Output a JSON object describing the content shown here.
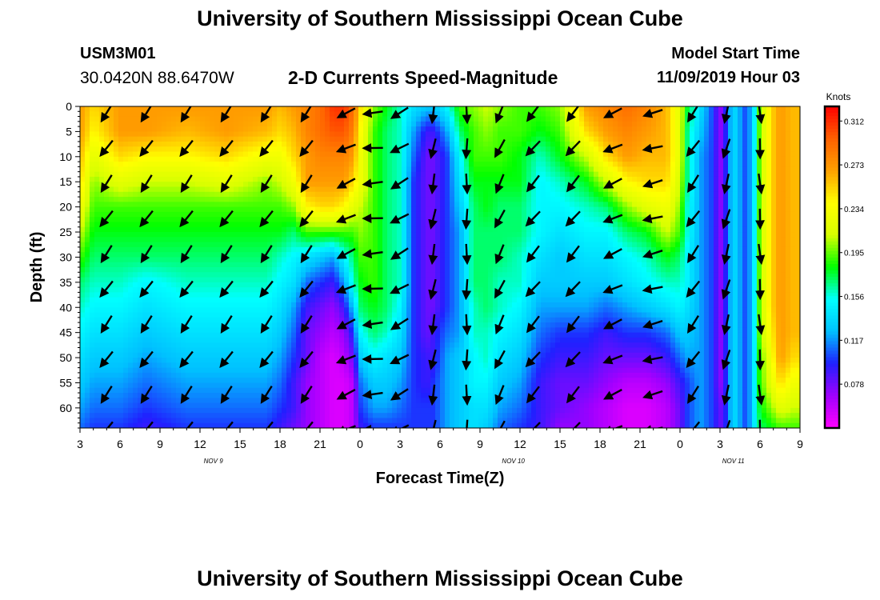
{
  "header": {
    "title": "University of Southern Mississippi Ocean Cube",
    "station_id": "USM3M01",
    "coordinates": "30.0420N 88.6470W",
    "product_title": "2-D Currents Speed-Magnitude",
    "model_start_label": "Model Start Time",
    "model_start_value": "11/09/2019 Hour 03"
  },
  "footer": {
    "title": "University of Southern Mississippi Ocean Cube"
  },
  "chart_data": {
    "type": "heatmap",
    "xlabel": "Forecast Time(Z)",
    "ylabel": "Depth (ft)",
    "x_range_hours": [
      0,
      54
    ],
    "y_range_ft": [
      0,
      64
    ],
    "y_reversed": true,
    "x_ticks": [
      {
        "h": 0,
        "label": "3"
      },
      {
        "h": 3,
        "label": "6"
      },
      {
        "h": 6,
        "label": "9"
      },
      {
        "h": 9,
        "label": "12"
      },
      {
        "h": 12,
        "label": "15"
      },
      {
        "h": 15,
        "label": "18"
      },
      {
        "h": 18,
        "label": "21"
      },
      {
        "h": 21,
        "label": "0"
      },
      {
        "h": 24,
        "label": "3"
      },
      {
        "h": 27,
        "label": "6"
      },
      {
        "h": 30,
        "label": "9"
      },
      {
        "h": 33,
        "label": "12"
      },
      {
        "h": 36,
        "label": "15"
      },
      {
        "h": 39,
        "label": "18"
      },
      {
        "h": 42,
        "label": "21"
      },
      {
        "h": 45,
        "label": "0"
      },
      {
        "h": 48,
        "label": "3"
      },
      {
        "h": 51,
        "label": "6"
      },
      {
        "h": 54,
        "label": "9"
      }
    ],
    "date_labels": [
      {
        "h": 10,
        "label": "NOV 9"
      },
      {
        "h": 32.5,
        "label": "NOV 10"
      },
      {
        "h": 49,
        "label": "NOV 11"
      }
    ],
    "y_ticks": [
      0,
      5,
      10,
      15,
      20,
      25,
      30,
      35,
      40,
      45,
      50,
      55,
      60
    ],
    "colorbar": {
      "unit": "Knots",
      "min": 0.039,
      "max": 0.325,
      "tick_values": [
        0.078,
        0.117,
        0.156,
        0.195,
        0.234,
        0.273,
        0.312
      ],
      "tick_labels": [
        "0.078",
        "0.117",
        "0.156",
        "0.195",
        "0.234",
        "0.273",
        "0.312"
      ],
      "colors": [
        "#ff00ff",
        "#a000ff",
        "#2020ff",
        "#00c0ff",
        "#00ffff",
        "#00ff00",
        "#d8ff00",
        "#ffff00",
        "#ffa000",
        "#ff6000",
        "#ff0000"
      ]
    },
    "speed_field": {
      "hours": [
        0,
        1,
        3,
        5,
        8,
        11,
        14,
        15,
        16,
        17,
        18,
        19,
        19.8,
        20.5,
        21,
        22,
        23,
        24,
        25,
        26,
        26.5,
        27.5,
        28.5,
        29.5,
        30.5,
        31.5,
        33,
        34.5,
        36,
        38,
        39.5,
        41,
        42.5,
        44,
        45,
        45.5,
        46.5,
        47.5,
        48,
        48.5,
        49,
        50,
        50.5,
        51,
        51.8,
        52.5,
        53.5,
        54
      ],
      "depths_ft": [
        0,
        5,
        10,
        15,
        20,
        25,
        30,
        35,
        40,
        45,
        50,
        55,
        60,
        64
      ],
      "knots": [
        [
          0.27,
          0.27,
          0.26,
          0.25,
          0.23,
          0.21,
          0.19,
          0.17,
          0.16,
          0.15,
          0.14,
          0.13,
          0.12,
          0.11
        ],
        [
          0.25,
          0.24,
          0.22,
          0.2,
          0.19,
          0.18,
          0.17,
          0.16,
          0.15,
          0.14,
          0.13,
          0.12,
          0.11,
          0.1
        ],
        [
          0.27,
          0.27,
          0.25,
          0.22,
          0.19,
          0.18,
          0.17,
          0.16,
          0.15,
          0.14,
          0.13,
          0.12,
          0.11,
          0.1
        ],
        [
          0.27,
          0.27,
          0.24,
          0.21,
          0.19,
          0.18,
          0.17,
          0.15,
          0.14,
          0.13,
          0.12,
          0.11,
          0.1,
          0.09
        ],
        [
          0.27,
          0.26,
          0.24,
          0.21,
          0.19,
          0.18,
          0.17,
          0.16,
          0.15,
          0.14,
          0.13,
          0.12,
          0.11,
          0.1
        ],
        [
          0.27,
          0.27,
          0.25,
          0.22,
          0.19,
          0.18,
          0.17,
          0.16,
          0.15,
          0.14,
          0.13,
          0.12,
          0.11,
          0.1
        ],
        [
          0.27,
          0.26,
          0.23,
          0.2,
          0.19,
          0.18,
          0.17,
          0.16,
          0.15,
          0.14,
          0.13,
          0.12,
          0.11,
          0.1
        ],
        [
          0.26,
          0.25,
          0.23,
          0.21,
          0.19,
          0.18,
          0.16,
          0.15,
          0.14,
          0.13,
          0.12,
          0.11,
          0.1,
          0.09
        ],
        [
          0.27,
          0.26,
          0.25,
          0.23,
          0.2,
          0.17,
          0.15,
          0.14,
          0.12,
          0.11,
          0.1,
          0.09,
          0.09,
          0.08
        ],
        [
          0.28,
          0.28,
          0.27,
          0.27,
          0.24,
          0.19,
          0.14,
          0.11,
          0.09,
          0.08,
          0.08,
          0.07,
          0.07,
          0.07
        ],
        [
          0.29,
          0.29,
          0.28,
          0.27,
          0.25,
          0.19,
          0.13,
          0.1,
          0.08,
          0.07,
          0.06,
          0.06,
          0.06,
          0.06
        ],
        [
          0.31,
          0.3,
          0.28,
          0.27,
          0.25,
          0.19,
          0.12,
          0.09,
          0.07,
          0.06,
          0.05,
          0.05,
          0.05,
          0.05
        ],
        [
          0.31,
          0.3,
          0.28,
          0.27,
          0.24,
          0.19,
          0.15,
          0.12,
          0.09,
          0.07,
          0.06,
          0.05,
          0.05,
          0.05
        ],
        [
          0.29,
          0.28,
          0.27,
          0.25,
          0.22,
          0.19,
          0.17,
          0.16,
          0.13,
          0.1,
          0.08,
          0.06,
          0.06,
          0.06
        ],
        [
          0.25,
          0.24,
          0.23,
          0.23,
          0.21,
          0.2,
          0.19,
          0.18,
          0.17,
          0.15,
          0.13,
          0.11,
          0.1,
          0.09
        ],
        [
          0.2,
          0.19,
          0.19,
          0.19,
          0.19,
          0.19,
          0.19,
          0.19,
          0.18,
          0.17,
          0.15,
          0.13,
          0.12,
          0.1
        ],
        [
          0.18,
          0.17,
          0.17,
          0.17,
          0.17,
          0.17,
          0.17,
          0.17,
          0.17,
          0.16,
          0.14,
          0.13,
          0.12,
          0.1
        ],
        [
          0.16,
          0.16,
          0.16,
          0.16,
          0.16,
          0.16,
          0.16,
          0.16,
          0.15,
          0.14,
          0.13,
          0.12,
          0.11,
          0.1
        ],
        [
          0.14,
          0.12,
          0.11,
          0.1,
          0.1,
          0.1,
          0.1,
          0.1,
          0.1,
          0.1,
          0.1,
          0.1,
          0.1,
          0.1
        ],
        [
          0.13,
          0.09,
          0.08,
          0.08,
          0.08,
          0.08,
          0.08,
          0.08,
          0.08,
          0.08,
          0.09,
          0.09,
          0.1,
          0.1
        ],
        [
          0.13,
          0.09,
          0.08,
          0.08,
          0.08,
          0.08,
          0.08,
          0.08,
          0.08,
          0.09,
          0.09,
          0.1,
          0.1,
          0.1
        ],
        [
          0.15,
          0.12,
          0.1,
          0.1,
          0.1,
          0.1,
          0.1,
          0.1,
          0.1,
          0.11,
          0.12,
          0.12,
          0.12,
          0.12
        ],
        [
          0.19,
          0.17,
          0.15,
          0.14,
          0.13,
          0.12,
          0.12,
          0.12,
          0.12,
          0.12,
          0.13,
          0.13,
          0.13,
          0.13
        ],
        [
          0.2,
          0.19,
          0.19,
          0.18,
          0.17,
          0.17,
          0.17,
          0.17,
          0.16,
          0.16,
          0.15,
          0.15,
          0.14,
          0.14
        ],
        [
          0.21,
          0.2,
          0.19,
          0.18,
          0.18,
          0.17,
          0.17,
          0.17,
          0.17,
          0.16,
          0.16,
          0.15,
          0.14,
          0.13
        ],
        [
          0.2,
          0.19,
          0.19,
          0.18,
          0.17,
          0.17,
          0.17,
          0.16,
          0.16,
          0.15,
          0.14,
          0.13,
          0.12,
          0.11
        ],
        [
          0.19,
          0.19,
          0.18,
          0.18,
          0.17,
          0.17,
          0.16,
          0.16,
          0.15,
          0.14,
          0.13,
          0.12,
          0.11,
          0.1
        ],
        [
          0.19,
          0.18,
          0.16,
          0.15,
          0.15,
          0.15,
          0.14,
          0.13,
          0.12,
          0.11,
          0.1,
          0.09,
          0.09,
          0.09
        ],
        [
          0.2,
          0.19,
          0.18,
          0.16,
          0.15,
          0.14,
          0.13,
          0.13,
          0.12,
          0.1,
          0.09,
          0.08,
          0.08,
          0.07
        ],
        [
          0.27,
          0.25,
          0.21,
          0.18,
          0.16,
          0.15,
          0.14,
          0.13,
          0.12,
          0.1,
          0.09,
          0.08,
          0.07,
          0.07
        ],
        [
          0.28,
          0.27,
          0.25,
          0.21,
          0.17,
          0.15,
          0.14,
          0.13,
          0.11,
          0.09,
          0.08,
          0.07,
          0.06,
          0.06
        ],
        [
          0.29,
          0.28,
          0.27,
          0.24,
          0.2,
          0.17,
          0.15,
          0.14,
          0.12,
          0.1,
          0.08,
          0.06,
          0.05,
          0.05
        ],
        [
          0.28,
          0.27,
          0.26,
          0.25,
          0.22,
          0.18,
          0.16,
          0.15,
          0.13,
          0.1,
          0.08,
          0.06,
          0.05,
          0.05
        ],
        [
          0.26,
          0.26,
          0.26,
          0.25,
          0.23,
          0.21,
          0.18,
          0.16,
          0.14,
          0.11,
          0.09,
          0.07,
          0.06,
          0.06
        ],
        [
          0.22,
          0.22,
          0.22,
          0.21,
          0.2,
          0.19,
          0.17,
          0.16,
          0.15,
          0.13,
          0.11,
          0.09,
          0.08,
          0.08
        ],
        [
          0.18,
          0.17,
          0.17,
          0.17,
          0.16,
          0.16,
          0.15,
          0.15,
          0.14,
          0.13,
          0.12,
          0.1,
          0.1,
          0.1
        ],
        [
          0.14,
          0.13,
          0.12,
          0.12,
          0.12,
          0.12,
          0.12,
          0.12,
          0.12,
          0.12,
          0.12,
          0.12,
          0.12,
          0.12
        ],
        [
          0.1,
          0.1,
          0.1,
          0.1,
          0.1,
          0.1,
          0.1,
          0.1,
          0.1,
          0.1,
          0.1,
          0.1,
          0.1,
          0.1
        ],
        [
          0.07,
          0.07,
          0.07,
          0.07,
          0.07,
          0.07,
          0.07,
          0.07,
          0.07,
          0.07,
          0.07,
          0.07,
          0.08,
          0.08
        ],
        [
          0.1,
          0.1,
          0.1,
          0.1,
          0.1,
          0.1,
          0.1,
          0.1,
          0.1,
          0.1,
          0.1,
          0.1,
          0.1,
          0.1
        ],
        [
          0.14,
          0.14,
          0.14,
          0.14,
          0.14,
          0.14,
          0.14,
          0.14,
          0.14,
          0.14,
          0.14,
          0.14,
          0.14,
          0.14
        ],
        [
          0.1,
          0.1,
          0.1,
          0.1,
          0.1,
          0.1,
          0.1,
          0.1,
          0.1,
          0.1,
          0.1,
          0.1,
          0.1,
          0.1
        ],
        [
          0.14,
          0.14,
          0.14,
          0.14,
          0.14,
          0.14,
          0.14,
          0.14,
          0.14,
          0.14,
          0.14,
          0.14,
          0.14,
          0.14
        ],
        [
          0.2,
          0.2,
          0.2,
          0.2,
          0.2,
          0.2,
          0.2,
          0.2,
          0.2,
          0.2,
          0.19,
          0.19,
          0.18,
          0.17
        ],
        [
          0.25,
          0.25,
          0.25,
          0.25,
          0.25,
          0.25,
          0.25,
          0.25,
          0.25,
          0.24,
          0.23,
          0.22,
          0.2,
          0.18
        ],
        [
          0.27,
          0.27,
          0.27,
          0.27,
          0.27,
          0.27,
          0.27,
          0.27,
          0.27,
          0.27,
          0.27,
          0.25,
          0.22,
          0.19
        ],
        [
          0.26,
          0.26,
          0.26,
          0.26,
          0.26,
          0.26,
          0.26,
          0.26,
          0.26,
          0.26,
          0.25,
          0.23,
          0.21,
          0.19
        ],
        [
          0.26,
          0.26,
          0.26,
          0.26,
          0.26,
          0.26,
          0.26,
          0.26,
          0.26,
          0.26,
          0.25,
          0.23,
          0.21,
          0.19
        ]
      ]
    },
    "current_vectors": {
      "hours": [
        2,
        5,
        8,
        11,
        14,
        17,
        20,
        22,
        24,
        26.5,
        29,
        31.5,
        34,
        37,
        40,
        43,
        46,
        48.5,
        51
      ],
      "depths_ft": [
        0,
        7,
        14,
        21,
        28,
        35,
        42,
        49,
        56,
        63
      ],
      "direction_deg_by_time": [
        215,
        215,
        215,
        215,
        215,
        215,
        245,
        265,
        240,
        190,
        180,
        205,
        220,
        220,
        245,
        255,
        215,
        195,
        175
      ],
      "note_units": "direction degrees clockwise from north"
    }
  }
}
